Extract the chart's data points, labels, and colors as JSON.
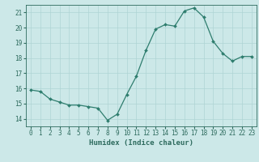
{
  "x": [
    0,
    1,
    2,
    3,
    4,
    5,
    6,
    7,
    8,
    9,
    10,
    11,
    12,
    13,
    14,
    15,
    16,
    17,
    18,
    19,
    20,
    21,
    22,
    23
  ],
  "y": [
    15.9,
    15.8,
    15.3,
    15.1,
    14.9,
    14.9,
    14.8,
    14.7,
    13.9,
    14.3,
    15.6,
    16.8,
    18.5,
    19.9,
    20.2,
    20.1,
    21.1,
    21.3,
    20.7,
    19.1,
    18.3,
    17.8,
    18.1,
    18.1
  ],
  "line_color": "#2e7d6e",
  "marker": "D",
  "marker_size": 2.0,
  "bg_color": "#cce8e8",
  "grid_color": "#afd4d4",
  "xlabel": "Humidex (Indice chaleur)",
  "ylim": [
    13.5,
    21.5
  ],
  "xlim": [
    -0.5,
    23.5
  ],
  "yticks": [
    14,
    15,
    16,
    17,
    18,
    19,
    20,
    21
  ],
  "xticks": [
    0,
    1,
    2,
    3,
    4,
    5,
    6,
    7,
    8,
    9,
    10,
    11,
    12,
    13,
    14,
    15,
    16,
    17,
    18,
    19,
    20,
    21,
    22,
    23
  ],
  "tick_color": "#2e6b5e",
  "label_fontsize": 6.5,
  "tick_fontsize": 5.5,
  "linewidth": 0.9
}
